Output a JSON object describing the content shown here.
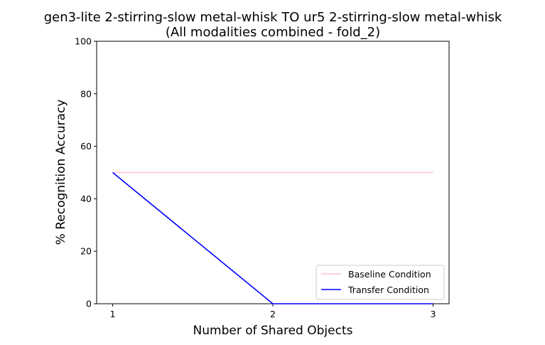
{
  "chart_data": {
    "type": "line",
    "title": "gen3-lite 2-stirring-slow metal-whisk TO ur5 2-stirring-slow metal-whisk",
    "subtitle": "(All modalities combined - fold_2)",
    "xlabel": "Number of Shared Objects",
    "ylabel": "% Recognition Accuracy",
    "x": [
      1,
      2,
      3
    ],
    "xticks": [
      "1",
      "2",
      "3"
    ],
    "yticks": [
      "0",
      "20",
      "40",
      "60",
      "80",
      "100"
    ],
    "ylim": [
      0,
      100
    ],
    "legend_position": "lower-right",
    "series": [
      {
        "name": "Baseline Condition",
        "color": "#ffc0cb",
        "values": [
          50,
          50,
          50
        ]
      },
      {
        "name": "Transfer Condition",
        "color": "#0000ff",
        "values": [
          50,
          0,
          0
        ]
      }
    ]
  }
}
